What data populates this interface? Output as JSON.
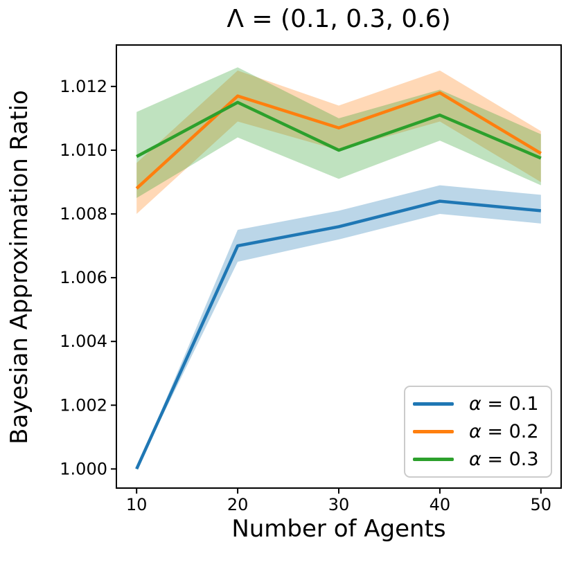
{
  "figure": {
    "background": "#ffffff",
    "text_color": "#000000"
  },
  "chart_data": {
    "type": "line",
    "title": "Λ = (0.1, 0.3, 0.6)",
    "xlabel": "Number of Agents",
    "ylabel": "Bayesian Approximation Ratio",
    "x": [
      10,
      20,
      30,
      40,
      50
    ],
    "xticks": [
      10,
      20,
      30,
      40,
      50
    ],
    "yticks": [
      1.0,
      1.002,
      1.004,
      1.006,
      1.008,
      1.01,
      1.012
    ],
    "xlim": [
      8,
      52
    ],
    "ylim": [
      0.9994,
      1.0133
    ],
    "grid": false,
    "legend_position": "lower right",
    "series": [
      {
        "label": "α = 0.1",
        "label_symbol": "α",
        "label_rest": " = 0.1",
        "color": "#1f77b4",
        "band_alpha": 0.3,
        "values": [
          1.0,
          1.007,
          1.0076,
          1.0084,
          1.0081
        ],
        "band_lower": [
          1.0,
          1.0065,
          1.0072,
          1.008,
          1.0077
        ],
        "band_upper": [
          1.0,
          1.0075,
          1.0081,
          1.0089,
          1.0086
        ]
      },
      {
        "label": "α = 0.2",
        "label_symbol": "α",
        "label_rest": " = 0.2",
        "color": "#ff7f0e",
        "band_alpha": 0.3,
        "values": [
          1.0088,
          1.0117,
          1.0107,
          1.0118,
          1.0099
        ],
        "band_lower": [
          1.008,
          1.0109,
          1.01,
          1.0109,
          1.009
        ],
        "band_upper": [
          1.0096,
          1.0125,
          1.0114,
          1.0125,
          1.0106
        ]
      },
      {
        "label": "α = 0.3",
        "label_symbol": "α",
        "label_rest": " = 0.3",
        "color": "#2ca02c",
        "band_alpha": 0.3,
        "values": [
          1.0098,
          1.0115,
          1.01,
          1.0111,
          1.00975
        ],
        "band_lower": [
          1.0085,
          1.0104,
          1.0091,
          1.0103,
          1.0089
        ],
        "band_upper": [
          1.0112,
          1.0126,
          1.011,
          1.0119,
          1.0105
        ]
      }
    ]
  }
}
